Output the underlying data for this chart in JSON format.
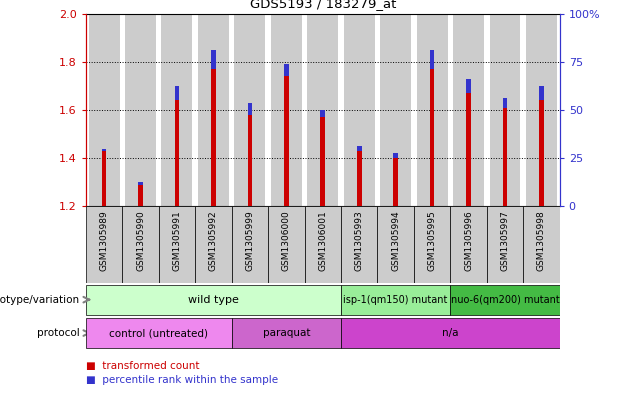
{
  "title": "GDS5193 / 183279_at",
  "samples": [
    "GSM1305989",
    "GSM1305990",
    "GSM1305991",
    "GSM1305992",
    "GSM1305999",
    "GSM1306000",
    "GSM1306001",
    "GSM1305993",
    "GSM1305994",
    "GSM1305995",
    "GSM1305996",
    "GSM1305997",
    "GSM1305998"
  ],
  "red_values": [
    1.44,
    1.3,
    1.7,
    1.85,
    1.63,
    1.79,
    1.6,
    1.45,
    1.42,
    1.85,
    1.73,
    1.65,
    1.7
  ],
  "blue_offsets": [
    0.01,
    0.01,
    0.06,
    0.08,
    0.05,
    0.05,
    0.03,
    0.02,
    0.02,
    0.08,
    0.06,
    0.04,
    0.06
  ],
  "ymin": 1.2,
  "ymax": 2.0,
  "y2min": 0,
  "y2max": 100,
  "yticks_left": [
    1.2,
    1.4,
    1.6,
    1.8,
    2.0
  ],
  "yticks_right": [
    0,
    25,
    50,
    75,
    100
  ],
  "red_color": "#cc0000",
  "blue_color": "#3333cc",
  "bar_bg_color": "#cccccc",
  "genotype_spans": [
    {
      "start": 0,
      "end": 6,
      "label": "wild type",
      "color": "#ccffcc"
    },
    {
      "start": 7,
      "end": 9,
      "label": "isp-1(qm150) mutant",
      "color": "#99ee99"
    },
    {
      "start": 10,
      "end": 12,
      "label": "nuo-6(qm200) mutant",
      "color": "#44bb44"
    }
  ],
  "protocol_spans": [
    {
      "start": 0,
      "end": 3,
      "label": "control (untreated)",
      "color": "#ee88ee"
    },
    {
      "start": 4,
      "end": 6,
      "label": "paraquat",
      "color": "#cc66cc"
    },
    {
      "start": 7,
      "end": 12,
      "label": "n/a",
      "color": "#cc44cc"
    }
  ],
  "legend_items": [
    {
      "label": "transformed count",
      "color": "#cc0000"
    },
    {
      "label": "percentile rank within the sample",
      "color": "#3333cc"
    }
  ]
}
